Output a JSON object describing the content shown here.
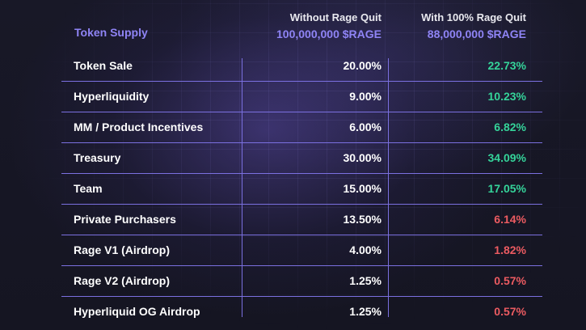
{
  "header": {
    "label": "Token Supply",
    "col1_title": "Without Rage Quit",
    "col1_value": "100,000,000 $RAGE",
    "col2_title": "With 100% Rage Quit",
    "col2_value": "88,000,000 $RAGE"
  },
  "rows": [
    {
      "name": "Token Sale",
      "without": "20.00%",
      "with": "22.73%",
      "trend": "up"
    },
    {
      "name": "Hyperliquidity",
      "without": "9.00%",
      "with": "10.23%",
      "trend": "up"
    },
    {
      "name": "MM / Product Incentives",
      "without": "6.00%",
      "with": "6.82%",
      "trend": "up"
    },
    {
      "name": "Treasury",
      "without": "30.00%",
      "with": "34.09%",
      "trend": "up"
    },
    {
      "name": "Team",
      "without": "15.00%",
      "with": "17.05%",
      "trend": "up"
    },
    {
      "name": "Private Purchasers",
      "without": "13.50%",
      "with": "6.14%",
      "trend": "down"
    },
    {
      "name": "Rage V1  (Airdrop)",
      "without": "4.00%",
      "with": "1.82%",
      "trend": "down"
    },
    {
      "name": "Rage V2  (Airdrop)",
      "without": "1.25%",
      "with": "0.57%",
      "trend": "down"
    },
    {
      "name": "Hyperliquid OG Airdrop",
      "without": "1.25%",
      "with": "0.57%",
      "trend": "down"
    }
  ],
  "colors": {
    "accent": "#8f84f5",
    "increase": "#35d49a",
    "decrease": "#ec5b61",
    "rule": "#7b70e0"
  }
}
